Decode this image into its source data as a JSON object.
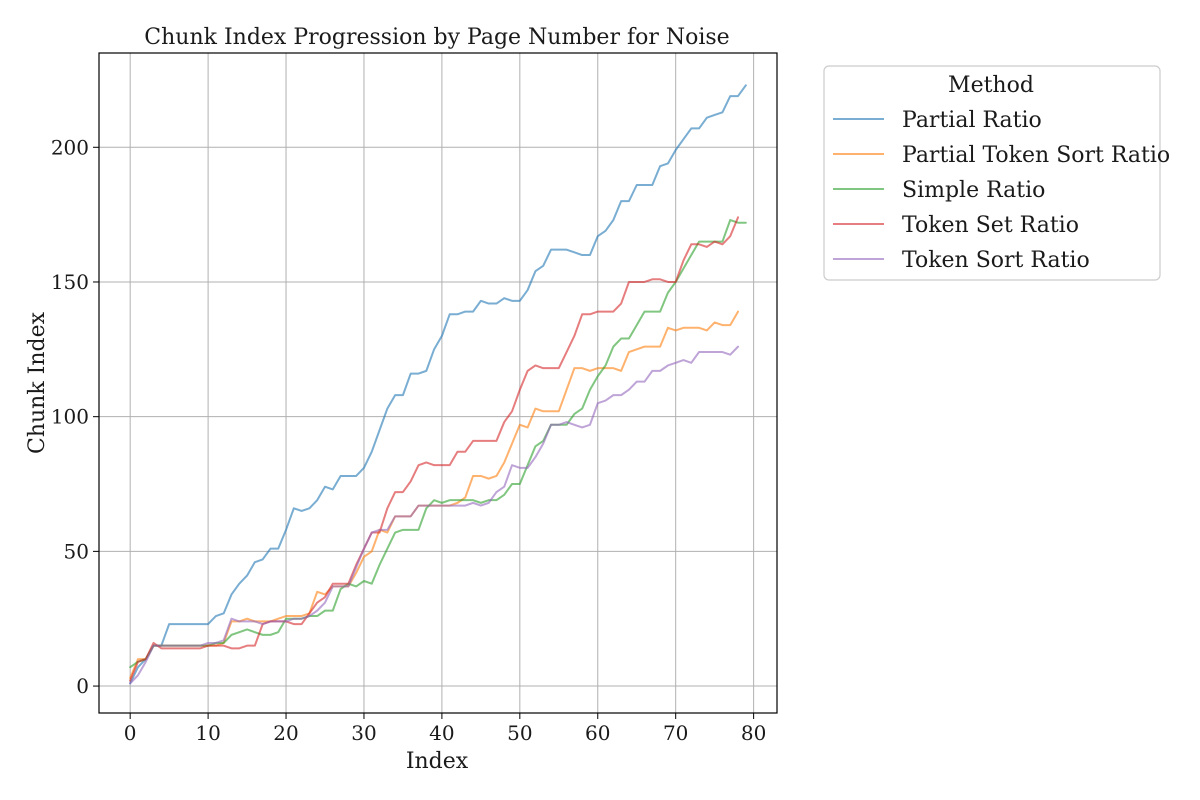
{
  "chart_data": {
    "type": "line",
    "title": "Chunk Index Progression by Page Number for Noise",
    "xlabel": "Index",
    "ylabel": "Chunk Index",
    "xlim": [
      -4,
      83
    ],
    "ylim": [
      -10,
      235
    ],
    "xticks": [
      0,
      10,
      20,
      30,
      40,
      50,
      60,
      70,
      80
    ],
    "yticks": [
      0,
      50,
      100,
      150,
      200
    ],
    "grid": true,
    "legend": {
      "title": "Method",
      "placement": "outside-top-right"
    },
    "series": [
      {
        "name": "Partial Ratio",
        "color": "#1f77b4",
        "values": [
          1,
          7,
          10,
          15,
          15,
          23,
          23,
          23,
          23,
          23,
          23,
          26,
          27,
          34,
          38,
          41,
          46,
          47,
          51,
          51,
          58,
          66,
          65,
          66,
          69,
          74,
          73,
          78,
          78,
          78,
          81,
          87,
          95,
          103,
          108,
          108,
          116,
          116,
          117,
          125,
          130,
          138,
          138,
          139,
          139,
          143,
          142,
          142,
          144,
          143,
          143,
          147,
          154,
          156,
          162,
          162,
          162,
          161,
          160,
          160,
          167,
          169,
          173,
          180,
          180,
          186,
          186,
          186,
          193,
          194,
          199,
          203,
          207,
          207,
          211,
          212,
          213,
          219,
          219,
          223
        ]
      },
      {
        "name": "Partial Token Sort Ratio",
        "color": "#ff7f0e",
        "values": [
          3,
          10,
          10,
          15,
          15,
          15,
          15,
          15,
          15,
          15,
          15,
          15,
          16,
          24,
          24,
          25,
          24,
          24,
          24,
          25,
          26,
          26,
          26,
          27,
          35,
          34,
          37,
          37,
          37,
          42,
          48,
          50,
          58,
          57,
          63,
          63,
          63,
          67,
          67,
          67,
          67,
          67,
          68,
          70,
          78,
          78,
          77,
          78,
          83,
          90,
          97,
          96,
          103,
          102,
          102,
          102,
          110,
          118,
          118,
          117,
          118,
          118,
          118,
          117,
          124,
          125,
          126,
          126,
          126,
          133,
          132,
          133,
          133,
          133,
          132,
          135,
          134,
          134,
          139
        ]
      },
      {
        "name": "Simple Ratio",
        "color": "#2ca02c",
        "values": [
          7,
          9,
          10,
          15,
          15,
          15,
          15,
          15,
          15,
          15,
          15,
          16,
          16,
          19,
          20,
          21,
          20,
          19,
          19,
          20,
          25,
          25,
          25,
          26,
          26,
          28,
          28,
          36,
          38,
          37,
          39,
          38,
          45,
          51,
          57,
          58,
          58,
          58,
          66,
          69,
          68,
          69,
          69,
          69,
          69,
          68,
          69,
          69,
          71,
          75,
          75,
          82,
          89,
          91,
          97,
          97,
          97,
          101,
          103,
          110,
          115,
          119,
          126,
          129,
          129,
          134,
          139,
          139,
          139,
          146,
          150,
          155,
          160,
          165,
          165,
          165,
          165,
          173,
          172,
          172
        ]
      },
      {
        "name": "Token Set Ratio",
        "color": "#d62728",
        "values": [
          2,
          9,
          10,
          16,
          14,
          14,
          14,
          14,
          14,
          14,
          15,
          15,
          15,
          14,
          14,
          15,
          15,
          23,
          24,
          24,
          24,
          23,
          23,
          27,
          31,
          33,
          38,
          38,
          38,
          45,
          51,
          57,
          57,
          66,
          72,
          72,
          76,
          82,
          83,
          82,
          82,
          82,
          87,
          87,
          91,
          91,
          91,
          91,
          98,
          102,
          110,
          117,
          119,
          118,
          118,
          118,
          124,
          130,
          138,
          138,
          139,
          139,
          139,
          142,
          150,
          150,
          150,
          151,
          151,
          150,
          150,
          158,
          164,
          164,
          163,
          165,
          164,
          167,
          174
        ]
      },
      {
        "name": "Token Sort Ratio",
        "color": "#9467bd",
        "values": [
          1,
          4,
          9,
          15,
          15,
          15,
          15,
          15,
          15,
          15,
          16,
          16,
          17,
          25,
          24,
          24,
          24,
          23,
          24,
          24,
          24,
          25,
          25,
          26,
          28,
          31,
          37,
          37,
          37,
          44,
          51,
          57,
          58,
          58,
          63,
          63,
          63,
          67,
          67,
          67,
          67,
          67,
          67,
          67,
          68,
          67,
          68,
          72,
          74,
          82,
          81,
          81,
          85,
          90,
          97,
          97,
          98,
          97,
          96,
          97,
          105,
          106,
          108,
          108,
          110,
          113,
          113,
          117,
          117,
          119,
          120,
          121,
          120,
          124,
          124,
          124,
          124,
          123,
          126
        ]
      }
    ]
  }
}
